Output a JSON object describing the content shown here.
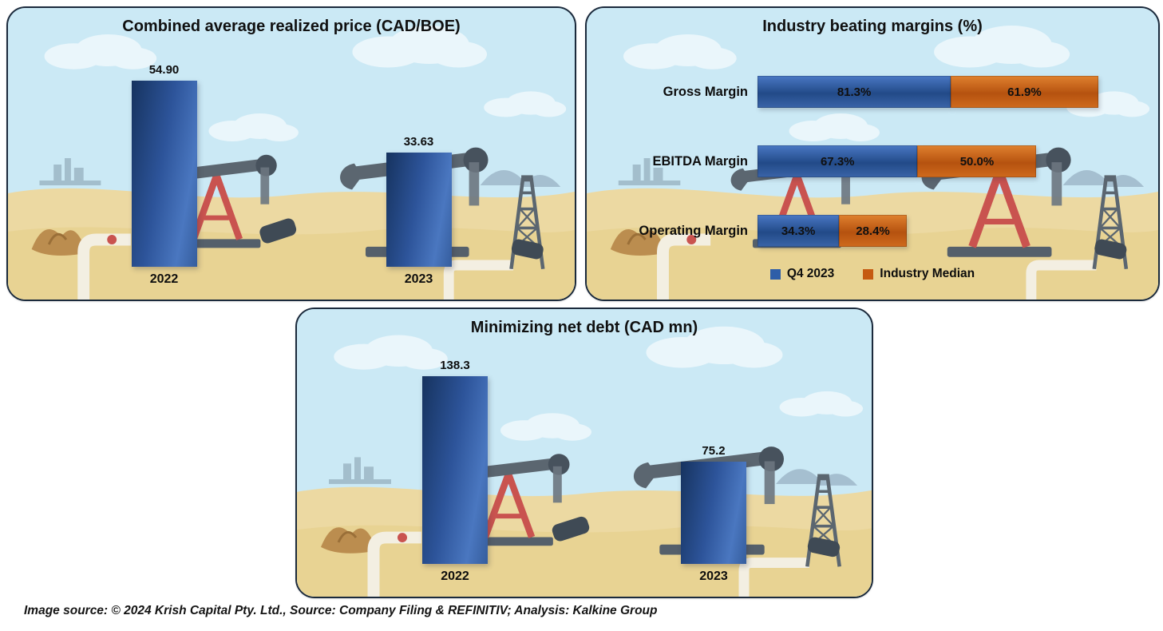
{
  "page": {
    "source_note": "Image source: © 2024 Krish Capital Pty. Ltd., Source: Company Filing & REFINITIV; Analysis: Kalkine Group"
  },
  "colors": {
    "q4_blue": "#2E5EA8",
    "median_orange": "#C55A11",
    "panel_border": "#1B2A3C",
    "sky": "#CBE9F5",
    "sand": "#ECD9A2",
    "text": "#111111"
  },
  "chart_data": [
    {
      "type": "bar",
      "title": "Combined average realized price (CAD/BOE)",
      "categories": [
        "2022",
        "2023"
      ],
      "values": [
        54.9,
        33.63
      ],
      "value_labels": [
        "54.90",
        "33.63"
      ],
      "xlabel": "",
      "ylabel": "",
      "ylim": [
        0,
        60
      ],
      "grid": false,
      "bar_color": "#2E5EA8"
    },
    {
      "type": "bar",
      "orientation": "horizontal-stacked",
      "title": "Industry beating margins (%)",
      "categories": [
        "Gross Margin",
        "EBITDA Margin",
        "Operating Margin"
      ],
      "series": [
        {
          "name": "Q4 2023",
          "color": "#2E5EA8",
          "values": [
            81.3,
            67.3,
            34.3
          ],
          "labels": [
            "81.3%",
            "67.3%",
            "34.3%"
          ]
        },
        {
          "name": "Industry Median",
          "color": "#C55A11",
          "values": [
            61.9,
            50.0,
            28.4
          ],
          "labels": [
            "61.9%",
            "50.0%",
            "28.4%"
          ]
        }
      ],
      "xlim": [
        0,
        145
      ],
      "legend_position": "bottom",
      "grid": false
    },
    {
      "type": "bar",
      "title": "Minimizing net debt (CAD mn)",
      "categories": [
        "2022",
        "2023"
      ],
      "values": [
        138.3,
        75.2
      ],
      "value_labels": [
        "138.3",
        "75.2"
      ],
      "xlabel": "",
      "ylabel": "",
      "ylim": [
        0,
        150
      ],
      "grid": false,
      "bar_color": "#2E5EA8"
    }
  ]
}
